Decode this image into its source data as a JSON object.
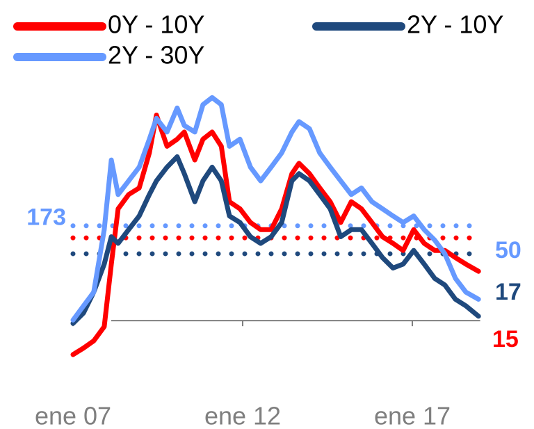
{
  "chart_data": {
    "type": "line",
    "x": [
      2007.0,
      2007.31,
      2007.61,
      2007.92,
      2008.13,
      2008.33,
      2008.64,
      2008.95,
      2009.25,
      2009.46,
      2009.77,
      2010.07,
      2010.28,
      2010.59,
      2010.83,
      2011.1,
      2011.37,
      2011.61,
      2011.92,
      2012.23,
      2012.53,
      2012.84,
      2013.15,
      2013.45,
      2013.66,
      2013.97,
      2014.27,
      2014.58,
      2014.89,
      2015.2,
      2015.5,
      2015.81,
      2016.12,
      2016.43,
      2016.73,
      2017.04,
      2017.35,
      2017.66,
      2017.96,
      2018.27,
      2018.58,
      2018.95
    ],
    "series": [
      {
        "name": "0Y - 10Y",
        "color": "#ff0000",
        "values": [
          -62,
          -50,
          -37,
          -11,
          103,
          204,
          230,
          242,
          306,
          375,
          318,
          331,
          344,
          293,
          331,
          344,
          318,
          217,
          204,
          179,
          166,
          166,
          204,
          268,
          287,
          268,
          242,
          217,
          179,
          217,
          204,
          179,
          153,
          141,
          128,
          166,
          141,
          128,
          128,
          115,
          103,
          90
        ]
      },
      {
        "name": "2Y - 10Y",
        "color": "#1f497d",
        "values": [
          -5,
          14,
          52,
          103,
          153,
          141,
          166,
          191,
          230,
          255,
          280,
          299,
          268,
          217,
          255,
          280,
          255,
          191,
          179,
          153,
          141,
          153,
          179,
          255,
          268,
          255,
          230,
          204,
          153,
          166,
          166,
          141,
          115,
          96,
          103,
          128,
          103,
          77,
          65,
          39,
          27,
          8
        ]
      },
      {
        "name": "2Y - 30Y",
        "color": "#6699ff",
        "values": [
          1,
          27,
          52,
          166,
          293,
          230,
          255,
          280,
          331,
          369,
          344,
          388,
          356,
          344,
          394,
          407,
          394,
          318,
          331,
          280,
          255,
          280,
          306,
          344,
          363,
          350,
          306,
          280,
          255,
          230,
          242,
          217,
          204,
          191,
          179,
          191,
          166,
          147,
          122,
          77,
          52,
          39
        ]
      }
    ],
    "xlim": [
      2007,
      2019
    ],
    "xticks": [
      {
        "value": 2007,
        "label": "ene 07"
      },
      {
        "value": 2012,
        "label": "ene 12"
      },
      {
        "value": 2017,
        "label": "ene 17"
      }
    ],
    "ylim": [
      -100,
      420
    ],
    "reference_lines": [
      {
        "value": 173,
        "label": "173",
        "color": "#6699ff"
      },
      {
        "value": 151,
        "color": "#ff0000"
      },
      {
        "value": 122,
        "color": "#1f497d"
      }
    ],
    "annotations": [
      {
        "text": "50",
        "color": "#6699ff"
      },
      {
        "text": "17",
        "color": "#1f497d"
      },
      {
        "text": "15",
        "color": "#ff0000"
      }
    ]
  }
}
